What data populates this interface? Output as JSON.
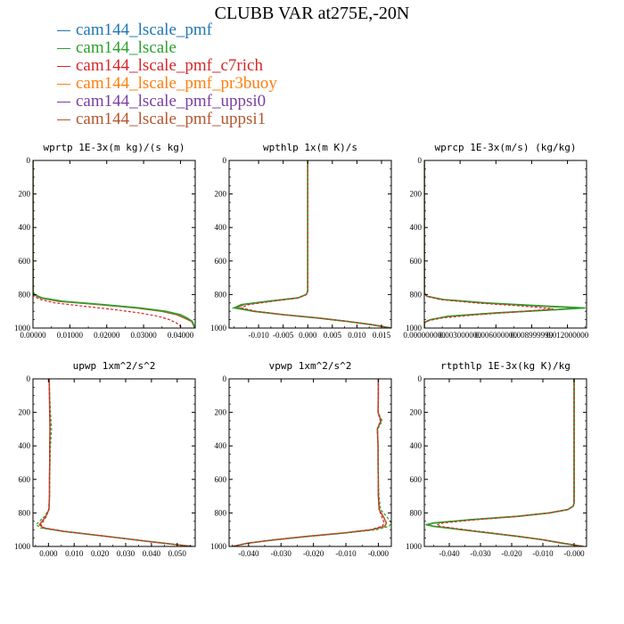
{
  "title": "CLUBB VAR at275E,-20N",
  "legend": [
    {
      "name": "cam144_lscale_pmf",
      "color": "#1f77b4"
    },
    {
      "name": "cam144_lscale",
      "color": "#2ca02c"
    },
    {
      "name": "cam144_lscale_pmf_c7rich",
      "color": "#d62728"
    },
    {
      "name": "cam144_lscale_pmf_pr3buoy",
      "color": "#ff7f0e"
    },
    {
      "name": "cam144_lscale_pmf_uppsi0",
      "color": "#7b3fa0"
    },
    {
      "name": "cam144_lscale_pmf_uppsi1",
      "color": "#b5562e"
    }
  ],
  "chart_data": [
    {
      "type": "line",
      "title": "wprtp  1E-3x(m kg)/(s kg)",
      "xlim": [
        0,
        0.044
      ],
      "ylim": [
        1000,
        0
      ],
      "y_inverted": true,
      "xticks": [
        "0.00000",
        "0.01000",
        "0.02000",
        "0.03000",
        "0.04000"
      ],
      "xtick_values": [
        0,
        0.01,
        0.02,
        0.03,
        0.04
      ],
      "yticks": [
        "0",
        "200",
        "400",
        "600",
        "800",
        "1000"
      ],
      "series": [
        {
          "color": "#b5562e",
          "y": [
            0,
            780,
            800,
            820,
            840,
            860,
            880,
            900,
            920,
            940,
            960,
            980,
            1000
          ],
          "x": [
            0,
            0,
            0.0003,
            0.002,
            0.007,
            0.018,
            0.028,
            0.035,
            0.039,
            0.041,
            0.043,
            0.0435,
            0.0438
          ]
        },
        {
          "color": "#2ca02c",
          "y": [
            0,
            780,
            800,
            820,
            840,
            860,
            880,
            900,
            920,
            940,
            960,
            980,
            1000
          ],
          "x": [
            0,
            0,
            0.0004,
            0.0025,
            0.008,
            0.019,
            0.029,
            0.036,
            0.04,
            0.0418,
            0.0432,
            0.0436,
            0.0438
          ]
        },
        {
          "color": "#d62728",
          "dashed": true,
          "y": [
            0,
            790,
            810,
            830,
            850,
            870,
            890,
            910,
            930,
            950,
            970,
            990,
            1000
          ],
          "x": [
            0,
            0,
            0.0003,
            0.002,
            0.006,
            0.014,
            0.022,
            0.029,
            0.034,
            0.037,
            0.039,
            0.04,
            0.0405
          ]
        }
      ]
    },
    {
      "type": "line",
      "title": "wpthlp  1x(m K)/s",
      "xlim": [
        -0.016,
        0.017
      ],
      "ylim": [
        1000,
        0
      ],
      "y_inverted": true,
      "xticks": [
        "-0.010",
        "-0.005",
        "0.000",
        "0.005",
        "0.010",
        "0.015"
      ],
      "xtick_values": [
        -0.01,
        -0.005,
        0,
        0.005,
        0.01,
        0.015
      ],
      "yticks": [
        "0",
        "200",
        "400",
        "600",
        "800",
        "1000"
      ],
      "series": [
        {
          "color": "#b5562e",
          "y": [
            0,
            780,
            800,
            820,
            840,
            860,
            880,
            900,
            920,
            940,
            960,
            980,
            1000
          ],
          "x": [
            0,
            0,
            -0.0003,
            -0.002,
            -0.008,
            -0.013,
            -0.0145,
            -0.011,
            -0.005,
            0.002,
            0.008,
            0.013,
            0.017
          ]
        },
        {
          "color": "#2ca02c",
          "y": [
            0,
            780,
            800,
            820,
            840,
            860,
            880,
            900,
            920,
            940,
            960,
            980,
            1000
          ],
          "x": [
            0,
            0,
            -0.0003,
            -0.002,
            -0.008,
            -0.0135,
            -0.015,
            -0.011,
            -0.005,
            0.002,
            0.008,
            0.013,
            0.017
          ]
        },
        {
          "color": "#d62728",
          "dashed": true,
          "y": [
            0,
            780,
            800,
            820,
            840,
            860,
            880,
            900,
            920,
            940,
            960,
            980,
            1000
          ],
          "x": [
            0,
            0,
            -0.0003,
            -0.002,
            -0.007,
            -0.012,
            -0.0135,
            -0.0105,
            -0.005,
            0.002,
            0.008,
            0.013,
            0.017
          ]
        }
      ]
    },
    {
      "type": "line",
      "title": "wprcp  1E-3x(m/s) (kg/kg)",
      "xlim": [
        0,
        0.0136
      ],
      "ylim": [
        1000,
        0
      ],
      "y_inverted": true,
      "xticks": [
        "0.000000000",
        "0.003000000",
        "0.006000000",
        "0.008999999",
        "0.012000000"
      ],
      "xtick_values": [
        0,
        0.003,
        0.006,
        0.009,
        0.012
      ],
      "yticks": [
        "0",
        "200",
        "400",
        "600",
        "800",
        "1000"
      ],
      "series": [
        {
          "color": "#b5562e",
          "y": [
            0,
            790,
            810,
            830,
            850,
            870,
            880,
            890,
            910,
            930,
            950,
            960,
            970,
            1000
          ],
          "x": [
            0,
            0,
            0.0002,
            0.0015,
            0.005,
            0.01,
            0.0133,
            0.011,
            0.006,
            0.002,
            0.0005,
            0.0002,
            0,
            0
          ]
        },
        {
          "color": "#2ca02c",
          "y": [
            0,
            790,
            810,
            830,
            850,
            870,
            880,
            890,
            910,
            930,
            950,
            960,
            970,
            1000
          ],
          "x": [
            0,
            0,
            0.0002,
            0.0016,
            0.0052,
            0.0105,
            0.0135,
            0.0112,
            0.006,
            0.002,
            0.0005,
            0.0002,
            0,
            0
          ]
        },
        {
          "color": "#d62728",
          "dashed": true,
          "y": [
            0,
            790,
            810,
            830,
            850,
            870,
            885,
            900,
            920,
            940,
            955,
            965,
            1000
          ],
          "x": [
            0,
            0,
            0.0002,
            0.0013,
            0.0043,
            0.0085,
            0.0108,
            0.0085,
            0.0045,
            0.0015,
            0.0004,
            0,
            0
          ]
        }
      ]
    },
    {
      "type": "line",
      "title": "upwp  1xm^2/s^2",
      "xlim": [
        -0.006,
        0.057
      ],
      "ylim": [
        1000,
        0
      ],
      "y_inverted": true,
      "xticks": [
        "0.000",
        "0.010",
        "0.020",
        "0.030",
        "0.040",
        "0.050"
      ],
      "xtick_values": [
        0,
        0.01,
        0.02,
        0.03,
        0.04,
        0.05
      ],
      "yticks": [
        "0",
        "200",
        "400",
        "600",
        "800",
        "1000"
      ],
      "series": [
        {
          "color": "#b5562e",
          "y": [
            0,
            100,
            200,
            300,
            400,
            500,
            600,
            700,
            780,
            820,
            850,
            870,
            890,
            910,
            930,
            950,
            970,
            990,
            1000
          ],
          "x": [
            0.0003,
            0.0004,
            0.0005,
            0.0006,
            0.0005,
            0.0005,
            0.0004,
            0.0004,
            0.0002,
            -0.001,
            -0.0025,
            -0.0035,
            -0.002,
            0.006,
            0.017,
            0.028,
            0.039,
            0.05,
            0.056
          ]
        },
        {
          "color": "#2ca02c",
          "dashed": true,
          "y": [
            0,
            100,
            200,
            300,
            400,
            500,
            600,
            700,
            780,
            820,
            850,
            870,
            890,
            910,
            930,
            950,
            970,
            990,
            1000
          ],
          "x": [
            0.0003,
            0.0005,
            0.0008,
            0.0012,
            0.0008,
            0.0006,
            0.0005,
            0.0004,
            0.0001,
            -0.0015,
            -0.0035,
            -0.0048,
            -0.003,
            0.0055,
            0.017,
            0.028,
            0.039,
            0.05,
            0.056
          ]
        },
        {
          "color": "#d62728",
          "dashed": true,
          "y": [
            0,
            100,
            200,
            300,
            400,
            500,
            600,
            700,
            780,
            820,
            850,
            870,
            890,
            910,
            930,
            950,
            970,
            990,
            1000
          ],
          "x": [
            0.0003,
            0.0004,
            0.0005,
            0.0006,
            0.0005,
            0.0005,
            0.0004,
            0.0004,
            0.0002,
            -0.0008,
            -0.002,
            -0.003,
            -0.0015,
            0.006,
            0.017,
            0.028,
            0.039,
            0.05,
            0.056
          ]
        }
      ]
    },
    {
      "type": "line",
      "title": "vpwp  1xm^2/s^2",
      "xlim": [
        -0.046,
        0.004
      ],
      "ylim": [
        1000,
        0
      ],
      "y_inverted": true,
      "xticks": [
        "-0.040",
        "-0.030",
        "-0.020",
        "-0.010",
        "-0.000"
      ],
      "xtick_values": [
        -0.04,
        -0.03,
        -0.02,
        -0.01,
        0
      ],
      "yticks": [
        "0",
        "200",
        "400",
        "600",
        "800",
        "1000"
      ],
      "series": [
        {
          "color": "#b5562e",
          "y": [
            0,
            100,
            200,
            250,
            300,
            400,
            500,
            600,
            700,
            780,
            820,
            860,
            880,
            900,
            920,
            940,
            960,
            980,
            1000
          ],
          "x": [
            0,
            0,
            -0.0001,
            0.0008,
            -0.0003,
            -0.0001,
            -0.0001,
            0,
            0,
            0.0003,
            0.0015,
            0.0025,
            0.002,
            -0.002,
            -0.011,
            -0.022,
            -0.032,
            -0.04,
            -0.045
          ]
        },
        {
          "color": "#2ca02c",
          "dashed": true,
          "y": [
            0,
            100,
            200,
            250,
            300,
            400,
            500,
            600,
            700,
            780,
            820,
            860,
            880,
            900,
            920,
            940,
            960,
            980,
            1000
          ],
          "x": [
            0,
            0,
            -0.0001,
            0.0012,
            -0.0002,
            -0.0001,
            0,
            0,
            0.0002,
            0.0007,
            0.0025,
            0.004,
            0.0033,
            -0.0005,
            -0.01,
            -0.021,
            -0.031,
            -0.04,
            -0.045
          ]
        },
        {
          "color": "#d62728",
          "dashed": true,
          "y": [
            0,
            100,
            200,
            250,
            300,
            400,
            500,
            600,
            700,
            780,
            820,
            860,
            880,
            900,
            920,
            940,
            960,
            980,
            1000
          ],
          "x": [
            0,
            0,
            -0.0001,
            0.0006,
            -0.0003,
            -0.0001,
            -0.0001,
            0,
            0,
            0.0002,
            0.001,
            0.0018,
            0.0012,
            -0.0025,
            -0.011,
            -0.022,
            -0.032,
            -0.04,
            -0.045
          ]
        }
      ]
    },
    {
      "type": "line",
      "title": "rtpthlp  1E-3x(kg K)/kg",
      "xlim": [
        -0.048,
        0.004
      ],
      "ylim": [
        1000,
        0
      ],
      "y_inverted": true,
      "xticks": [
        "-0.040",
        "-0.030",
        "-0.020",
        "-0.010",
        "-0.000"
      ],
      "xtick_values": [
        -0.04,
        -0.03,
        -0.02,
        -0.01,
        0
      ],
      "yticks": [
        "0",
        "200",
        "400",
        "600",
        "800",
        "1000"
      ],
      "series": [
        {
          "color": "#b5562e",
          "y": [
            0,
            740,
            760,
            780,
            800,
            820,
            840,
            860,
            870,
            880,
            900,
            920,
            940,
            960,
            980,
            1000
          ],
          "x": [
            0,
            0,
            -0.0003,
            -0.002,
            -0.008,
            -0.018,
            -0.033,
            -0.045,
            -0.047,
            -0.045,
            -0.036,
            -0.027,
            -0.018,
            -0.01,
            -0.004,
            0.003
          ]
        },
        {
          "color": "#2ca02c",
          "y": [
            0,
            740,
            760,
            780,
            800,
            820,
            840,
            860,
            870,
            880,
            900,
            920,
            940,
            960,
            980,
            1000
          ],
          "x": [
            0,
            0,
            -0.0003,
            -0.002,
            -0.008,
            -0.018,
            -0.033,
            -0.045,
            -0.0475,
            -0.045,
            -0.036,
            -0.027,
            -0.018,
            -0.01,
            -0.004,
            0.003
          ]
        },
        {
          "color": "#d62728",
          "dashed": true,
          "y": [
            0,
            740,
            760,
            780,
            800,
            820,
            840,
            860,
            870,
            880,
            900,
            920,
            940,
            960,
            980,
            1000
          ],
          "x": [
            0,
            0,
            -0.0003,
            -0.002,
            -0.008,
            -0.018,
            -0.031,
            -0.042,
            -0.044,
            -0.043,
            -0.035,
            -0.026,
            -0.018,
            -0.01,
            -0.004,
            0.003
          ]
        }
      ]
    }
  ]
}
